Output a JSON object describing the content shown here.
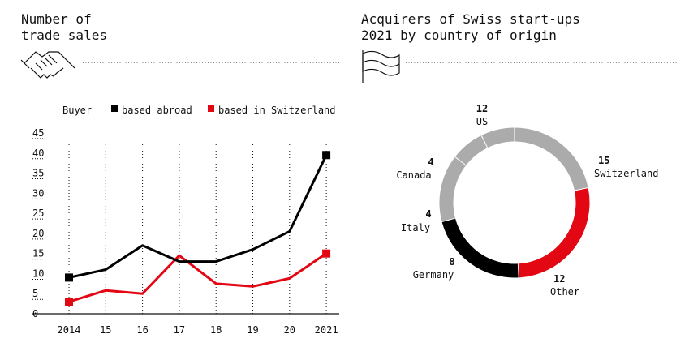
{
  "left_title": "Number of\ntrade sales",
  "right_title": "Acquirers of Swiss start-ups\n2021 by country of origin",
  "colors": {
    "abroad": "#000000",
    "switzerland": "#e30613",
    "other_slice": "#ababab"
  },
  "chart_data": [
    {
      "type": "line",
      "title": "Number of\ntrade sales",
      "legend_title": "Buyer",
      "x": [
        "2014",
        "15",
        "16",
        "17",
        "18",
        "19",
        "20",
        "2021"
      ],
      "yticks": [
        "0",
        "5",
        "10",
        "15",
        "20",
        "25",
        "30",
        "35",
        "40",
        "45"
      ],
      "ylim": [
        0,
        45
      ],
      "series": [
        {
          "name": "based abroad",
          "color": "#000000",
          "values": [
            9,
            11,
            17,
            13,
            13,
            16,
            20.5,
            39.5
          ]
        },
        {
          "name": "based in Switzerland",
          "color": "#e30613",
          "values": [
            3,
            5.8,
            5,
            14.5,
            7.5,
            6.8,
            8.8,
            15
          ]
        }
      ],
      "grid": "vertical dotted",
      "legend": "top"
    },
    {
      "type": "pie",
      "title": "Acquirers of Swiss start-ups\n2021 by country of origin",
      "slices": [
        {
          "label": "US",
          "value": 12,
          "color": "#ababab"
        },
        {
          "label": "Switzerland",
          "value": 15,
          "color": "#e30613"
        },
        {
          "label": "Other",
          "value": 12,
          "color": "#000000"
        },
        {
          "label": "Germany",
          "value": 8,
          "color": "#ababab"
        },
        {
          "label": "Italy",
          "value": 4,
          "color": "#ababab"
        },
        {
          "label": "Canada",
          "value": 4,
          "color": "#ababab"
        }
      ]
    }
  ]
}
